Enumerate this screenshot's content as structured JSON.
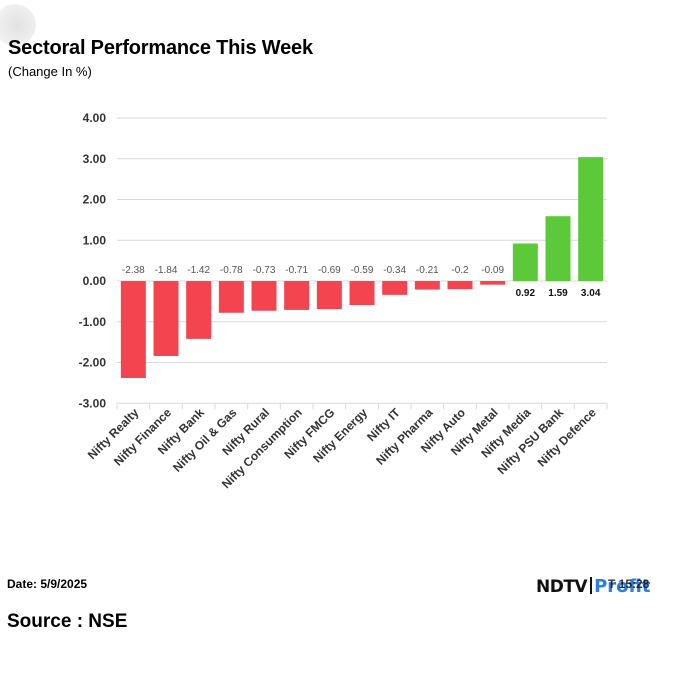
{
  "header": {
    "title": "Sectoral Performance This Week",
    "subtitle": "(Change In %)"
  },
  "footer": {
    "date": "Date: 5/9/2025",
    "source": "Source : NSE",
    "logo_ndtv": "NDTV",
    "logo_profit": "Profit",
    "logo_overlap": "T   15:28"
  },
  "colors": {
    "negative": "#f4444f",
    "positive": "#5cc93a",
    "grid": "#d9d9d9",
    "axis_text": "#333333",
    "label_text": "#555555"
  },
  "chart_data": {
    "type": "bar",
    "title": "Sectoral Performance This Week",
    "subtitle": "(Change In %)",
    "xlabel": "",
    "ylabel": "",
    "ylim": [
      -3.0,
      4.0
    ],
    "yticks": [
      "4.00",
      "3.00",
      "2.00",
      "1.00",
      "0.00",
      "-1.00",
      "-2.00",
      "-3.00"
    ],
    "grid": true,
    "categories": [
      "Nifty Realty",
      "Nifty Finance",
      "Nifty Bank",
      "Nifty Oil & Gas",
      "Nifty Rural",
      "Nifty Consumption",
      "Nifty FMCG",
      "Nifty Energy",
      "Nifty IT",
      "Nifty Pharma",
      "Nifty Auto",
      "Nifty Metal",
      "Nifty Media",
      "Nifty PSU Bank",
      "Nifty Defence"
    ],
    "values": [
      -2.38,
      -1.84,
      -1.42,
      -0.78,
      -0.73,
      -0.71,
      -0.69,
      -0.59,
      -0.34,
      -0.21,
      -0.2,
      -0.09,
      0.92,
      1.59,
      3.04
    ],
    "labels": [
      "-2.38",
      "-1.84",
      "-1.42",
      "-0.78",
      "-0.73",
      "-0.71",
      "-0.69",
      "-0.59",
      "-0.34",
      "-0.21",
      "-0.2",
      "-0.09",
      "0.92",
      "1.59",
      "3.04"
    ]
  }
}
